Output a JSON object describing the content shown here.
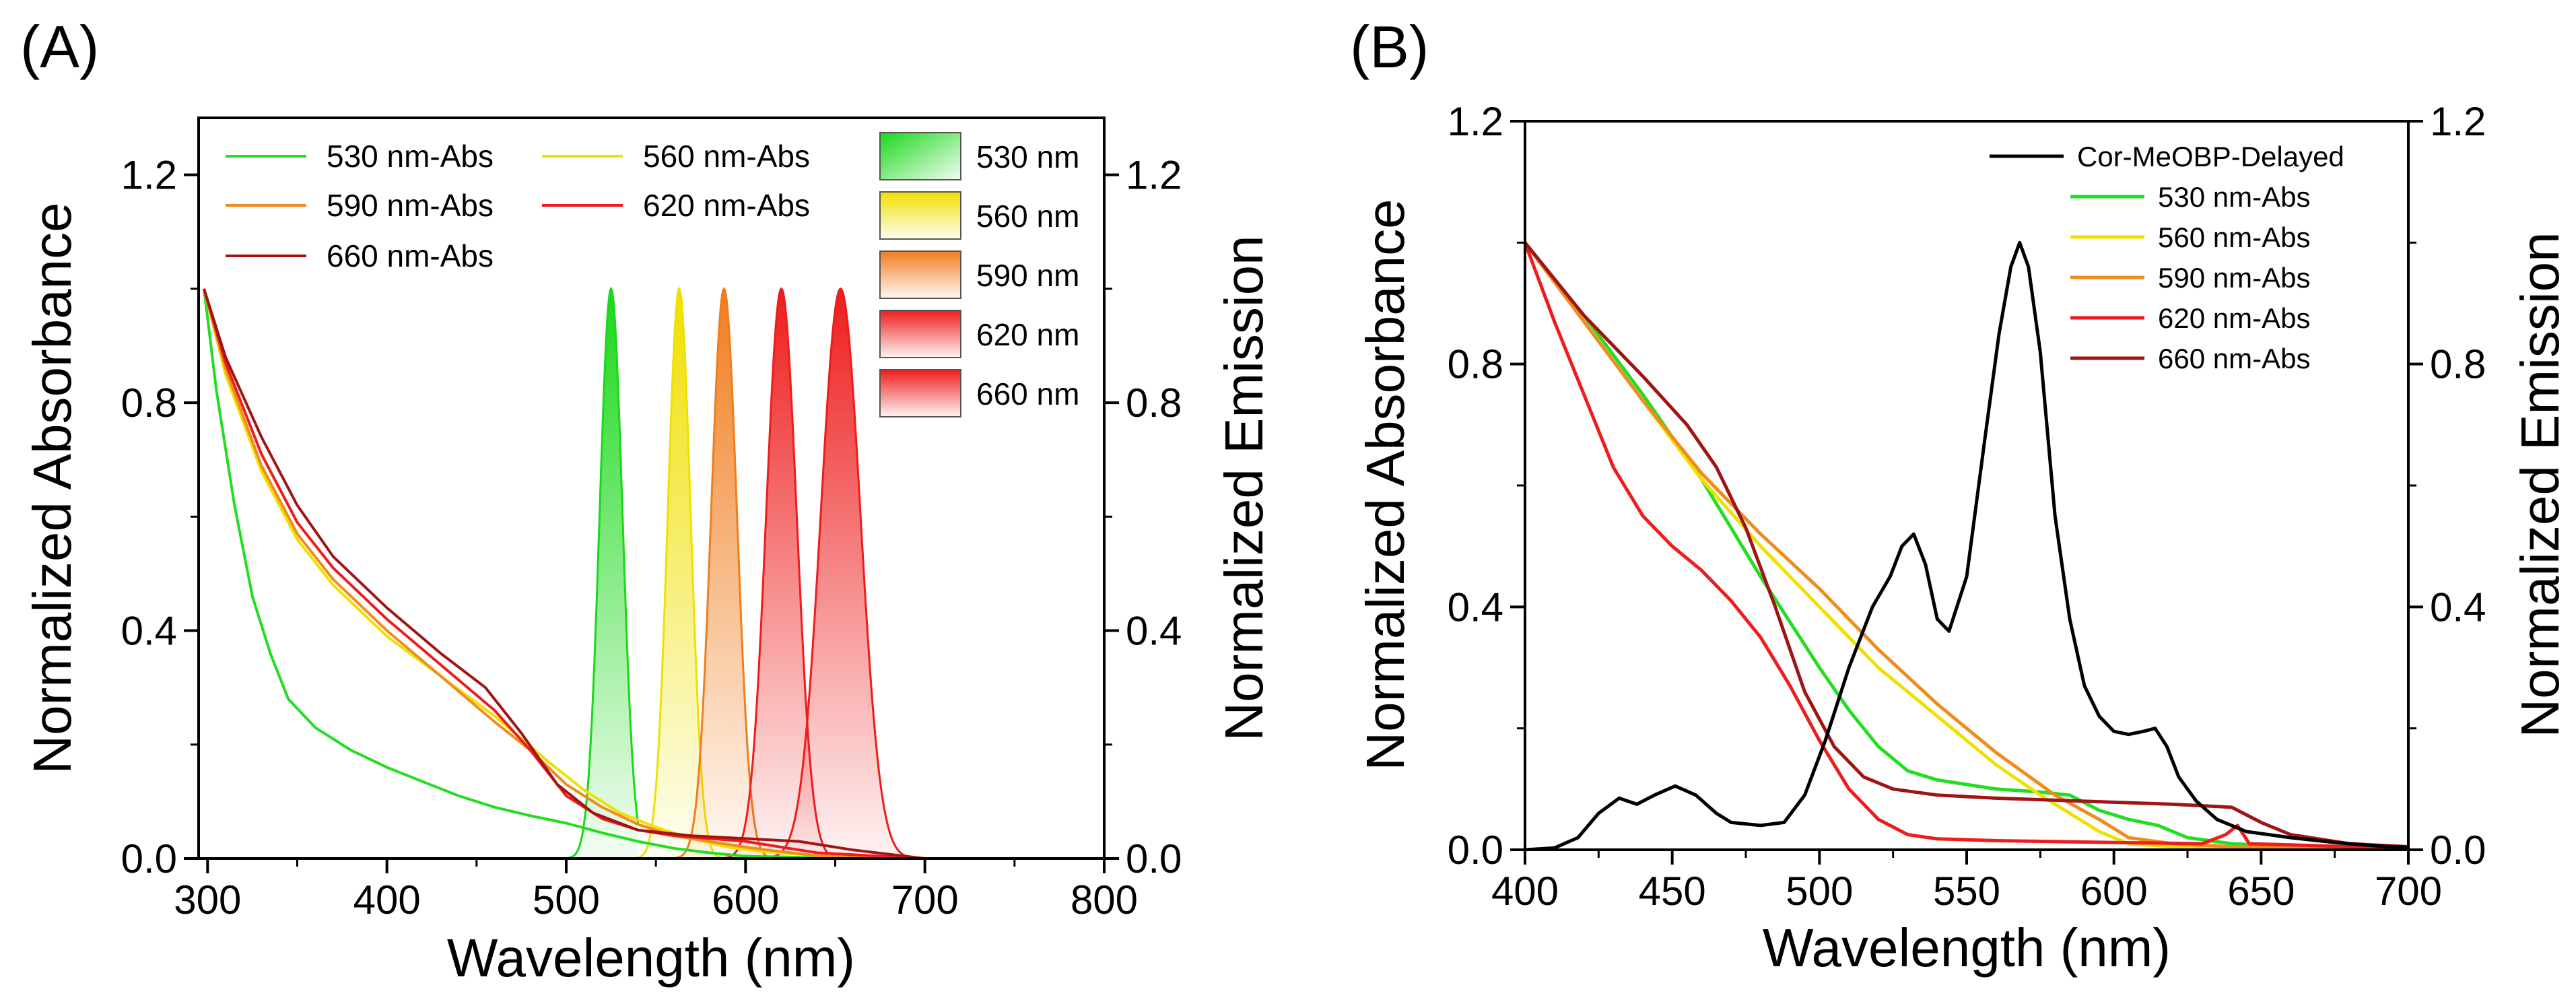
{
  "chart_data": [
    {
      "panel": "(A)",
      "type": "line",
      "xlabel": "Wavelength (nm)",
      "ylabel_left": "Normalized Absorbance",
      "ylabel_right": "Normalized Emission",
      "xlim": [
        295,
        800
      ],
      "ylim_left": [
        0,
        1.3
      ],
      "ylim_right": [
        0,
        1.3
      ],
      "xticks": [
        "300",
        "400",
        "500",
        "600",
        "700",
        "800"
      ],
      "yticks_left": [
        "0.0",
        "0.4",
        "0.8",
        "1.2"
      ],
      "yticks_right": [
        "0.0",
        "0.4",
        "0.8",
        "1.2"
      ],
      "absorbance_series": [
        {
          "name": "530 nm-Abs",
          "color": "#22dd22",
          "x": [
            298,
            305,
            315,
            325,
            335,
            345,
            360,
            380,
            400,
            420,
            440,
            460,
            480,
            500,
            520,
            540,
            560,
            580,
            600,
            650,
            700,
            745
          ],
          "y": [
            1.0,
            0.82,
            0.62,
            0.46,
            0.36,
            0.28,
            0.23,
            0.19,
            0.16,
            0.135,
            0.11,
            0.09,
            0.075,
            0.062,
            0.045,
            0.03,
            0.018,
            0.01,
            0.004,
            0.001,
            0.0,
            0.0
          ]
        },
        {
          "name": "560 nm-Abs",
          "color": "#f0e000",
          "x": [
            298,
            310,
            330,
            350,
            370,
            400,
            430,
            460,
            490,
            510,
            530,
            550,
            570,
            590,
            610,
            640,
            700,
            745
          ],
          "y": [
            1.0,
            0.85,
            0.68,
            0.56,
            0.48,
            0.39,
            0.32,
            0.25,
            0.17,
            0.12,
            0.08,
            0.055,
            0.035,
            0.02,
            0.012,
            0.005,
            0.0,
            0.0
          ]
        },
        {
          "name": "590 nm-Abs",
          "color": "#f08c1e",
          "x": [
            298,
            310,
            330,
            350,
            370,
            400,
            430,
            460,
            480,
            500,
            520,
            540,
            560,
            580,
            600,
            620,
            640,
            700,
            745
          ],
          "y": [
            1.0,
            0.86,
            0.69,
            0.57,
            0.49,
            0.4,
            0.32,
            0.24,
            0.19,
            0.13,
            0.09,
            0.06,
            0.04,
            0.03,
            0.02,
            0.012,
            0.005,
            0.0,
            0.0
          ]
        },
        {
          "name": "620 nm-Abs",
          "color": "#ee1c1c",
          "x": [
            298,
            310,
            330,
            350,
            370,
            400,
            430,
            460,
            480,
            500,
            520,
            540,
            560,
            580,
            600,
            620,
            640,
            700,
            745
          ],
          "y": [
            1.0,
            0.87,
            0.71,
            0.59,
            0.51,
            0.42,
            0.34,
            0.26,
            0.19,
            0.11,
            0.07,
            0.05,
            0.04,
            0.035,
            0.03,
            0.02,
            0.01,
            0.0,
            0.0
          ]
        },
        {
          "name": "660 nm-Abs",
          "color": "#a01414",
          "x": [
            298,
            310,
            330,
            350,
            370,
            400,
            430,
            455,
            475,
            495,
            515,
            540,
            570,
            600,
            630,
            660,
            700,
            745
          ],
          "y": [
            1.0,
            0.88,
            0.74,
            0.62,
            0.53,
            0.44,
            0.36,
            0.3,
            0.22,
            0.13,
            0.08,
            0.05,
            0.04,
            0.035,
            0.03,
            0.015,
            0.0,
            0.0
          ]
        }
      ],
      "emission_series": [
        {
          "name": "530 nm",
          "color": "#1ad81a",
          "peak": 525,
          "fwhm": 15,
          "x_start": 380,
          "x_end": 745,
          "cutoff": 540
        },
        {
          "name": "560 nm",
          "color": "#f0e000",
          "peak": 563,
          "fwhm": 15,
          "x_start": 380,
          "x_end": 745
        },
        {
          "name": "590 nm",
          "color": "#f07d1e",
          "peak": 588,
          "fwhm": 17,
          "x_start": 380,
          "x_end": 745
        },
        {
          "name": "620 nm",
          "color": "#ee1c1c",
          "peak": 620,
          "fwhm": 20,
          "x_start": 380,
          "x_end": 745
        },
        {
          "name": "660 nm",
          "color": "#ee1c1c",
          "peak": 653,
          "fwhm": 26,
          "x_start": 380,
          "x_end": 745
        }
      ],
      "legend": [
        "530 nm-Abs",
        "560 nm-Abs",
        "590 nm-Abs",
        "620 nm-Abs",
        "660 nm-Abs",
        "530 nm",
        "560 nm",
        "590 nm",
        "620 nm",
        "660 nm"
      ]
    },
    {
      "panel": "(B)",
      "type": "line",
      "xlabel": "Wavelength (nm)",
      "ylabel_left": "Normalized Absorbance",
      "ylabel_right": "Normalized Emission",
      "xlim": [
        400,
        700
      ],
      "ylim_left": [
        0,
        1.2
      ],
      "ylim_right": [
        0,
        1.2
      ],
      "xticks": [
        "400",
        "450",
        "500",
        "550",
        "600",
        "650",
        "700"
      ],
      "yticks_left": [
        "0.0",
        "0.4",
        "0.8",
        "1.2"
      ],
      "yticks_right": [
        "0.0",
        "0.4",
        "0.8",
        "1.2"
      ],
      "series": [
        {
          "name": "Cor-MeOBP-Delayed",
          "color": "#000000",
          "x": [
            400,
            410,
            418,
            425,
            432,
            438,
            444,
            451,
            458,
            465,
            470,
            480,
            488,
            495,
            502,
            510,
            518,
            524,
            528,
            532,
            536,
            540,
            544,
            550,
            556,
            561,
            565,
            568,
            571,
            575,
            580,
            585,
            590,
            595,
            600,
            605,
            610,
            614,
            618,
            622,
            628,
            635,
            645,
            660,
            675,
            690,
            700
          ],
          "y": [
            0.0,
            0.003,
            0.02,
            0.06,
            0.085,
            0.075,
            0.09,
            0.105,
            0.09,
            0.06,
            0.045,
            0.04,
            0.045,
            0.09,
            0.18,
            0.3,
            0.4,
            0.45,
            0.5,
            0.52,
            0.47,
            0.38,
            0.36,
            0.45,
            0.67,
            0.85,
            0.96,
            1.0,
            0.96,
            0.82,
            0.55,
            0.38,
            0.27,
            0.22,
            0.195,
            0.19,
            0.195,
            0.2,
            0.17,
            0.12,
            0.08,
            0.05,
            0.03,
            0.02,
            0.012,
            0.006,
            0.004
          ]
        },
        {
          "name": "530 nm-Abs",
          "color": "#22dd22",
          "x": [
            400,
            420,
            440,
            460,
            480,
            500,
            510,
            520,
            530,
            540,
            560,
            575,
            585,
            595,
            605,
            615,
            625,
            640,
            660,
            680,
            700
          ],
          "y": [
            1.0,
            0.88,
            0.75,
            0.61,
            0.45,
            0.3,
            0.23,
            0.17,
            0.13,
            0.115,
            0.1,
            0.095,
            0.09,
            0.065,
            0.05,
            0.04,
            0.02,
            0.01,
            0.005,
            0.003,
            0.002
          ]
        },
        {
          "name": "560 nm-Abs",
          "color": "#f0e000",
          "x": [
            400,
            420,
            440,
            460,
            480,
            500,
            520,
            540,
            560,
            575,
            585,
            595,
            605,
            620,
            640,
            660,
            680,
            700
          ],
          "y": [
            1.0,
            0.87,
            0.74,
            0.61,
            0.5,
            0.4,
            0.3,
            0.22,
            0.14,
            0.09,
            0.06,
            0.03,
            0.01,
            0.005,
            0.003,
            0.002,
            0.001,
            0.0
          ]
        },
        {
          "name": "590 nm-Abs",
          "color": "#f08c1e",
          "x": [
            400,
            420,
            440,
            460,
            480,
            500,
            520,
            540,
            560,
            580,
            595,
            605,
            620,
            640,
            660,
            680,
            700
          ],
          "y": [
            1.0,
            0.87,
            0.74,
            0.62,
            0.52,
            0.43,
            0.33,
            0.24,
            0.16,
            0.09,
            0.05,
            0.02,
            0.01,
            0.005,
            0.003,
            0.002,
            0.0
          ]
        },
        {
          "name": "620 nm-Abs",
          "color": "#ee1c1c",
          "x": [
            400,
            410,
            420,
            430,
            440,
            450,
            460,
            470,
            480,
            490,
            500,
            510,
            520,
            530,
            540,
            560,
            600,
            630,
            638,
            642,
            646,
            660,
            680,
            700
          ],
          "y": [
            1.0,
            0.87,
            0.75,
            0.63,
            0.55,
            0.5,
            0.46,
            0.41,
            0.35,
            0.27,
            0.18,
            0.1,
            0.05,
            0.025,
            0.018,
            0.015,
            0.012,
            0.01,
            0.025,
            0.04,
            0.01,
            0.008,
            0.005,
            0.003
          ]
        },
        {
          "name": "660 nm-Abs",
          "color": "#a01414",
          "x": [
            400,
            420,
            440,
            455,
            465,
            475,
            485,
            495,
            505,
            515,
            525,
            540,
            560,
            590,
            620,
            640,
            650,
            660,
            680,
            700
          ],
          "y": [
            1.0,
            0.88,
            0.78,
            0.7,
            0.63,
            0.53,
            0.4,
            0.26,
            0.17,
            0.12,
            0.1,
            0.09,
            0.085,
            0.08,
            0.075,
            0.07,
            0.045,
            0.025,
            0.01,
            0.005
          ]
        }
      ],
      "legend": [
        "Cor-MeOBP-Delayed",
        "530 nm-Abs",
        "560 nm-Abs",
        "590 nm-Abs",
        "620 nm-Abs",
        "660 nm-Abs"
      ]
    }
  ]
}
